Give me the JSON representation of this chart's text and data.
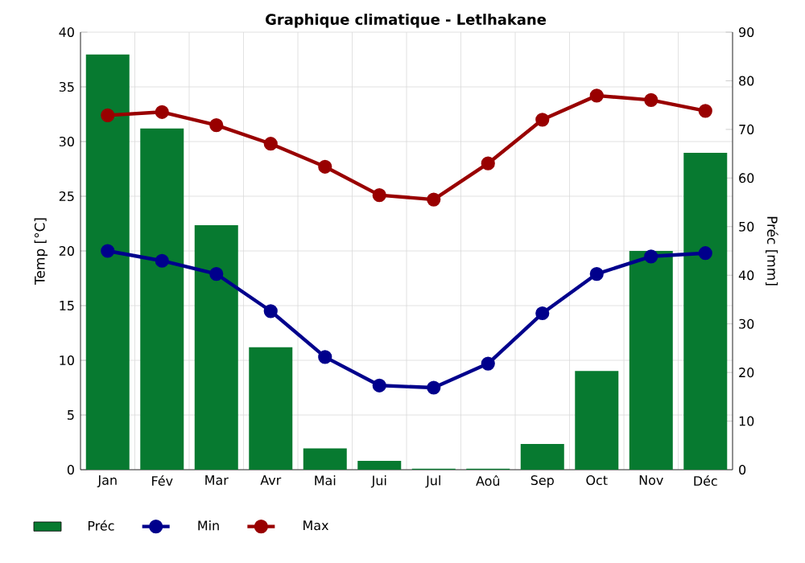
{
  "chart_data": {
    "type": "line",
    "title": "Graphique climatique - Letlhakane",
    "ylabel": "Temp [°C]",
    "y2label": "Préc [mm]",
    "categories": [
      "Jan",
      "Fév",
      "Mar",
      "Avr",
      "Mai",
      "Jui",
      "Jul",
      "Aoû",
      "Sep",
      "Oct",
      "Nov",
      "Déc"
    ],
    "series": [
      {
        "name": "Préc",
        "type": "bar",
        "axis": "y2",
        "color": "#077a30",
        "values": [
          85.4,
          70.2,
          50.3,
          25.2,
          4.4,
          1.8,
          0.2,
          0.2,
          5.3,
          20.3,
          45,
          65.2
        ]
      },
      {
        "name": "Min",
        "type": "line",
        "color": "#00008c",
        "values": [
          20.0,
          19.1,
          17.9,
          14.5,
          10.3,
          7.7,
          7.5,
          9.7,
          14.3,
          17.9,
          19.5,
          19.8
        ]
      },
      {
        "name": "Max",
        "type": "line",
        "color": "#990000",
        "values": [
          32.4,
          32.7,
          31.5,
          29.8,
          27.7,
          25.1,
          24.7,
          28.0,
          32.0,
          34.2,
          33.8,
          32.8
        ]
      }
    ],
    "ylim": [
      0,
      40
    ],
    "yticks": [
      0,
      5,
      10,
      15,
      20,
      25,
      30,
      35,
      40
    ],
    "y2lim": [
      0,
      90
    ],
    "y2ticks": [
      0,
      10,
      20,
      30,
      40,
      50,
      60,
      70,
      80,
      90
    ],
    "grid": true,
    "legend": "bottom",
    "marker": "circle",
    "line_style": "solid"
  }
}
